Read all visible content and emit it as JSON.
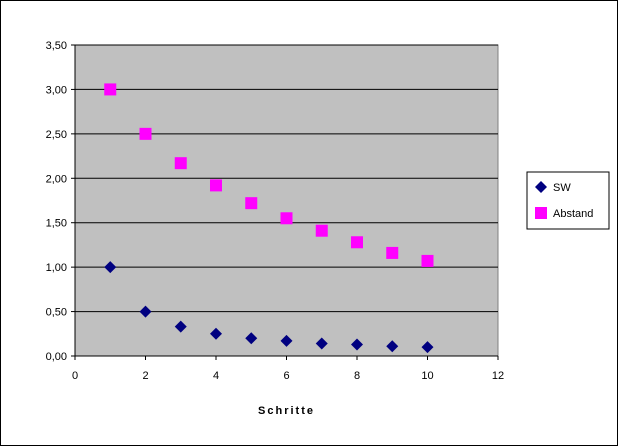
{
  "chart_data": {
    "type": "scatter",
    "title": "",
    "xlabel": "Schritte",
    "ylabel": "",
    "xlim": [
      0,
      12
    ],
    "ylim": [
      0,
      3.5
    ],
    "x_ticks": [
      0,
      2,
      4,
      6,
      8,
      10,
      12
    ],
    "x_tick_labels": [
      "0",
      "2",
      "4",
      "6",
      "8",
      "10",
      "12"
    ],
    "y_ticks": [
      0,
      0.5,
      1,
      1.5,
      2,
      2.5,
      3,
      3.5
    ],
    "y_tick_labels": [
      "0,00",
      "0,50",
      "1,00",
      "1,50",
      "2,00",
      "2,50",
      "3,00",
      "3,50"
    ],
    "grid": "horizontal",
    "plot_background": "#c0c0c0",
    "legend_placement": "right",
    "series": [
      {
        "name": "SW",
        "color": "#000080",
        "marker": "diamond",
        "x": [
          1,
          2,
          3,
          4,
          5,
          6,
          7,
          8,
          9,
          10
        ],
        "y": [
          1.0,
          0.5,
          0.33,
          0.25,
          0.2,
          0.17,
          0.14,
          0.13,
          0.11,
          0.1
        ]
      },
      {
        "name": "Abstand",
        "color": "#ff00ff",
        "marker": "square",
        "x": [
          1,
          2,
          3,
          4,
          5,
          6,
          7,
          8,
          9,
          10
        ],
        "y": [
          3.0,
          2.5,
          2.17,
          1.92,
          1.72,
          1.55,
          1.41,
          1.28,
          1.16,
          1.07
        ]
      }
    ]
  }
}
